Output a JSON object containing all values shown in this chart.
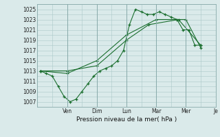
{
  "background_color": "#daeaea",
  "grid_color": "#aac8c8",
  "line_color": "#1a6e2e",
  "title": "Pression niveau de la mer( hPa )",
  "ylabel_values": [
    1007,
    1009,
    1011,
    1013,
    1015,
    1017,
    1019,
    1021,
    1023,
    1025
  ],
  "ylim": [
    1006,
    1026
  ],
  "xlim": [
    0,
    12
  ],
  "x_tick_positions": [
    2,
    4,
    6,
    8,
    10,
    12
  ],
  "x_tick_labels": [
    "Ven",
    "Dim",
    "Lun",
    "Mar",
    "Mer",
    "Je"
  ],
  "series1_x": [
    0.2,
    0.6,
    1.0,
    1.4,
    1.8,
    2.2,
    2.6,
    3.0,
    3.4,
    3.8,
    4.2,
    4.6,
    5.0,
    5.4,
    5.8,
    6.2,
    6.6,
    7.0,
    7.4,
    7.8,
    8.2,
    8.6,
    9.0,
    9.4,
    9.8,
    10.2,
    10.6,
    11.0
  ],
  "series1_y": [
    1013,
    1012.5,
    1012,
    1010,
    1008,
    1007,
    1007.5,
    1009,
    1010.5,
    1012,
    1013,
    1013.5,
    1014,
    1015,
    1017,
    1022,
    1025,
    1024.5,
    1024,
    1024,
    1024.5,
    1024,
    1023.5,
    1023,
    1021,
    1021,
    1018,
    1018
  ],
  "series2_x": [
    0.2,
    2.0,
    4.0,
    6.0,
    7.5,
    9.5,
    11.0
  ],
  "series2_y": [
    1013,
    1013,
    1014,
    1019,
    1022,
    1023,
    1018
  ],
  "series3_x": [
    0.2,
    2.0,
    4.0,
    6.0,
    8.0,
    10.0,
    11.0
  ],
  "series3_y": [
    1013,
    1012.5,
    1015,
    1020,
    1023,
    1023,
    1017.5
  ]
}
